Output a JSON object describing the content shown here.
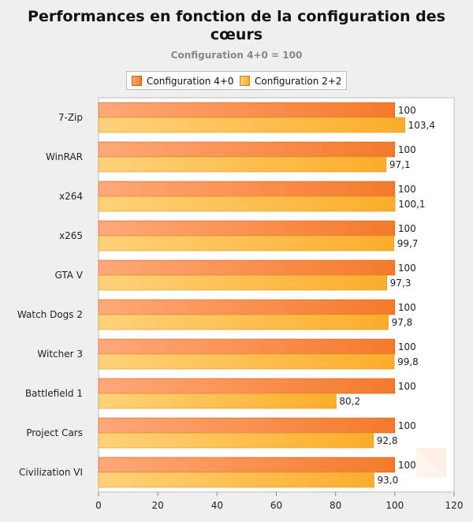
{
  "chart_data": {
    "type": "bar",
    "orientation": "horizontal",
    "title": "Performances en fonction de la configuration des cœurs",
    "subtitle": "Configuration 4+0 = 100",
    "xlim": [
      0,
      120
    ],
    "xticks": [
      "0",
      "20",
      "40",
      "60",
      "80",
      "100",
      "120"
    ],
    "categories": [
      "7-Zip",
      "WinRAR",
      "x264",
      "x265",
      "GTA V",
      "Watch Dogs 2",
      "Witcher 3",
      "Battlefield 1",
      "Project Cars",
      "Civilization VI"
    ],
    "series": [
      {
        "name": "Configuration 4+0",
        "color": "#f78a3a",
        "values": [
          100,
          100,
          100,
          100,
          100,
          100,
          100,
          100,
          100,
          100
        ],
        "labels": [
          "100",
          "100",
          "100",
          "100",
          "100",
          "100",
          "100",
          "100",
          "100",
          "100"
        ]
      },
      {
        "name": "Configuration 2+2",
        "color": "#fdb93c",
        "values": [
          103.4,
          97.1,
          100.1,
          99.7,
          97.3,
          97.8,
          99.8,
          80.2,
          92.8,
          93.0
        ],
        "labels": [
          "103,4",
          "97,1",
          "100,1",
          "99,7",
          "97,3",
          "97,8",
          "99,8",
          "80,2",
          "92,8",
          "93,0"
        ]
      }
    ],
    "legend_position": "top",
    "grid": false
  }
}
